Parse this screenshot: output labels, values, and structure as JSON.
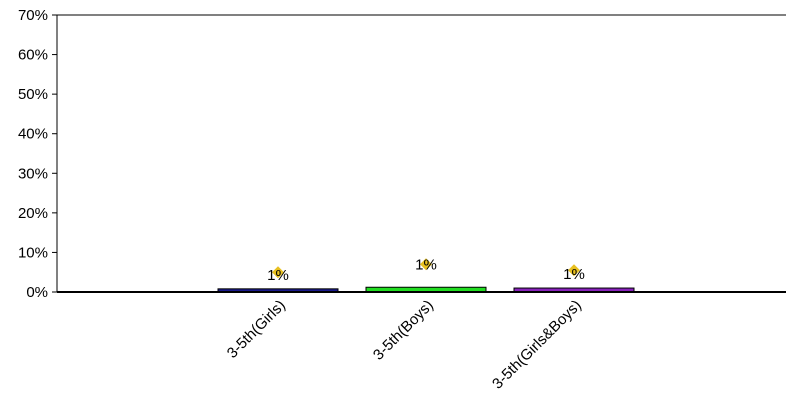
{
  "chart_data": {
    "type": "bar",
    "categories": [
      "3-5th(Girls)",
      "3-5th(Boys)",
      "3-5th(Girls&Boys)"
    ],
    "values": [
      0.8,
      1.2,
      1.0
    ],
    "data_labels": [
      "1%",
      "1%",
      "1%"
    ],
    "markers": [
      5.0,
      7.0,
      5.5
    ],
    "bar_colors": [
      "#1a1a8c",
      "#22dd22",
      "#8822bb"
    ],
    "marker_color": "#e8c020",
    "ylim": [
      0,
      70
    ],
    "yticks": [
      "0%",
      "10%",
      "20%",
      "30%",
      "40%",
      "50%",
      "60%",
      "70%"
    ],
    "ytick_values": [
      0,
      10,
      20,
      30,
      40,
      50,
      60,
      70
    ],
    "title": "",
    "xlabel": "",
    "ylabel": "",
    "grid": false,
    "legend": "none"
  }
}
